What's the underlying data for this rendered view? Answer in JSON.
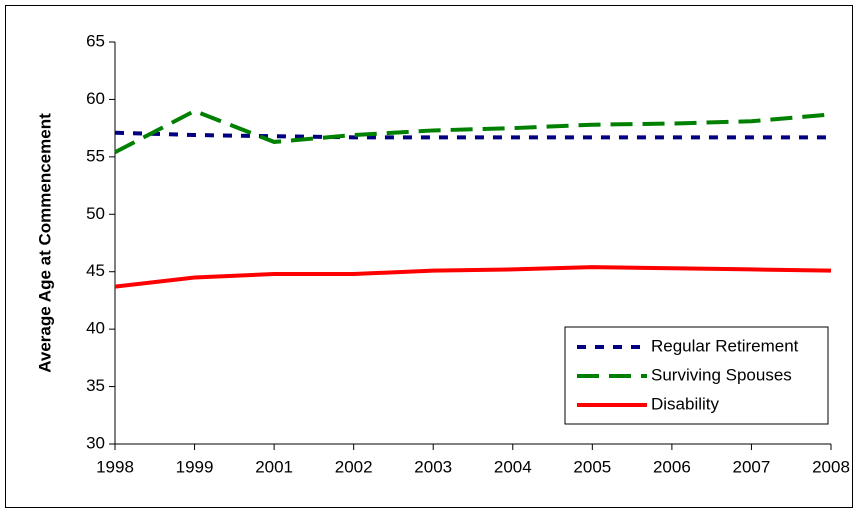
{
  "chart_data": {
    "type": "line",
    "y_label": "Average Age at Commencement",
    "categories": [
      "1998",
      "1999",
      "2001",
      "2002",
      "2003",
      "2004",
      "2005",
      "2006",
      "2007",
      "2008"
    ],
    "series": [
      {
        "name": "Regular Retirement",
        "color": "#000080",
        "style": "dotted",
        "values": [
          57.1,
          56.9,
          56.8,
          56.7,
          56.7,
          56.7,
          56.7,
          56.7,
          56.7,
          56.7
        ]
      },
      {
        "name": "Surviving Spouses",
        "color": "#008000",
        "style": "dashed",
        "values": [
          55.4,
          59.0,
          56.3,
          56.9,
          57.3,
          57.5,
          57.8,
          57.9,
          58.1,
          58.7
        ]
      },
      {
        "name": "Disability",
        "color": "#ff0000",
        "style": "solid",
        "values": [
          43.7,
          44.5,
          44.8,
          44.8,
          45.1,
          45.2,
          45.4,
          45.3,
          45.2,
          45.1
        ]
      }
    ],
    "ylim": [
      30,
      65
    ],
    "yticks": [
      30,
      35,
      40,
      45,
      50,
      55,
      60,
      65
    ],
    "grid": false,
    "legend": "lower-right"
  }
}
